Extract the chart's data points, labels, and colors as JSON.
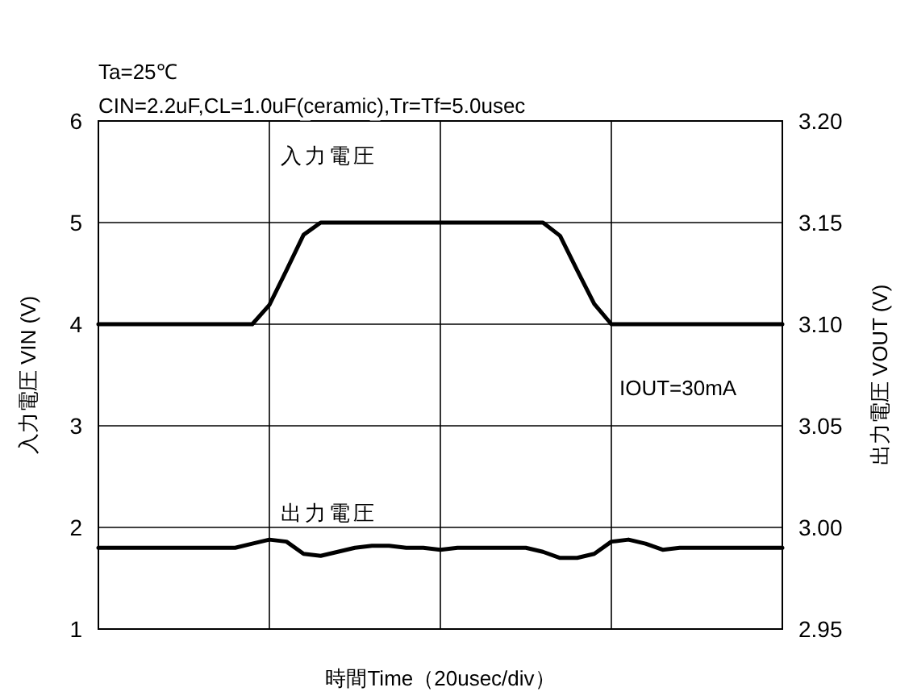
{
  "chart_data": {
    "type": "line",
    "categories": [
      null,
      null,
      null,
      null,
      null,
      null,
      null,
      null,
      null,
      null,
      null,
      null,
      null,
      null,
      null,
      null,
      null,
      null,
      null,
      null,
      null,
      null,
      null,
      null,
      null,
      null,
      null,
      null,
      null,
      null,
      null,
      null,
      null,
      null,
      null,
      null,
      null,
      null,
      null,
      null,
      null
    ],
    "series": [
      {
        "name": "入力電圧",
        "color": "#000000",
        "values": [
          4,
          4,
          4,
          4,
          4,
          4,
          4,
          4,
          4,
          4,
          4.19,
          4.53,
          4.88,
          5,
          5,
          5,
          5,
          5,
          5,
          5,
          5,
          5,
          5,
          5,
          5,
          5,
          5,
          4.87,
          4.53,
          4.2,
          4,
          4,
          4,
          4,
          4,
          4,
          4,
          4,
          4,
          4,
          4
        ]
      },
      {
        "name": "出力電圧",
        "color": "#000000",
        "axis": "y2",
        "values": [
          2.99,
          2.99,
          2.99,
          2.99,
          2.99,
          2.99,
          2.99,
          2.99,
          2.99,
          2.992,
          2.994,
          2.993,
          2.987,
          2.986,
          2.988,
          2.99,
          2.991,
          2.991,
          2.99,
          2.99,
          2.989,
          2.99,
          2.99,
          2.99,
          2.99,
          2.99,
          2.988,
          2.985,
          2.985,
          2.987,
          2.993,
          2.994,
          2.992,
          2.989,
          2.99,
          2.99,
          2.99,
          2.99,
          2.99,
          2.99,
          2.99
        ]
      }
    ],
    "ylim": [
      1,
      6
    ],
    "yticks": [
      1,
      2,
      3,
      4,
      5,
      6
    ],
    "y2lim": [
      2.95,
      3.2
    ],
    "y2ticks": [
      2.95,
      {
        "value": 3,
        "label": "3.00"
      },
      3.05,
      {
        "value": 3.1,
        "label": "3.10"
      },
      3.15,
      {
        "value": 3.2,
        "label": "3.20"
      }
    ],
    "ylabel": "入力電圧  VIN (V)",
    "y2label": "出力電圧  VOUT (V)",
    "xlabel": "時間Time（20usec/div）",
    "grid": true,
    "annotations": [
      "Ta=25℃",
      "CIN=2.2uF,CL=1.0uF(ceramic),Tr=Tf=5.0usec",
      "IOUT=30mA"
    ]
  }
}
